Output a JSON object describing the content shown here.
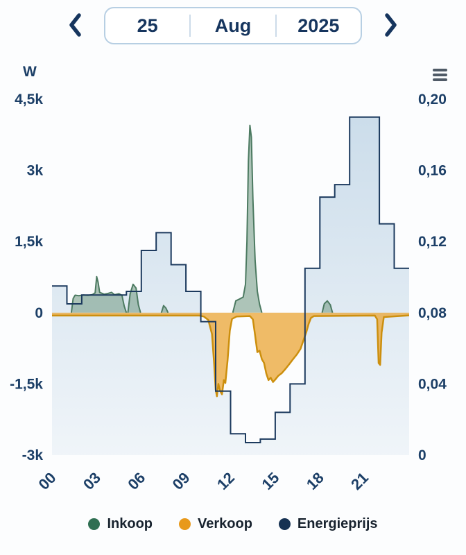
{
  "date_nav": {
    "day": "25",
    "month": "Aug",
    "year": "2025"
  },
  "icons": {
    "prev": "chevron-left",
    "next": "chevron-right",
    "menu": "hamburger-menu"
  },
  "chart": {
    "unit_label": "W"
  },
  "legend": {
    "items": [
      {
        "label": "Inkoop",
        "color": "#2f6f52"
      },
      {
        "label": "Verkoop",
        "color": "#e8991a"
      },
      {
        "label": "Energieprijs",
        "color": "#163253"
      }
    ]
  },
  "chart_data": {
    "type": "area",
    "title": "",
    "x_unit": "hour",
    "xlim": [
      0,
      24
    ],
    "grid": false,
    "legend_position": "bottom",
    "x_axis": {
      "ticks": [
        {
          "value": 0,
          "label": "00"
        },
        {
          "value": 3,
          "label": "03"
        },
        {
          "value": 6,
          "label": "06"
        },
        {
          "value": 9,
          "label": "09"
        },
        {
          "value": 12,
          "label": "12"
        },
        {
          "value": 15,
          "label": "15"
        },
        {
          "value": 18,
          "label": "18"
        },
        {
          "value": 21,
          "label": "21"
        }
      ]
    },
    "left_axis": {
      "label": "W",
      "range": [
        -3000,
        4500
      ],
      "ticks": [
        {
          "value": 4500,
          "label": "4,5k"
        },
        {
          "value": 3000,
          "label": "3k"
        },
        {
          "value": 1500,
          "label": "1,5k"
        },
        {
          "value": 0,
          "label": "0"
        },
        {
          "value": -1500,
          "label": "-1,5k"
        },
        {
          "value": -3000,
          "label": "-3k"
        }
      ]
    },
    "right_axis": {
      "range": [
        0,
        0.2
      ],
      "ticks": [
        {
          "value": 0.2,
          "label": "0,20"
        },
        {
          "value": 0.16,
          "label": "0,16"
        },
        {
          "value": 0.12,
          "label": "0,12"
        },
        {
          "value": 0.08,
          "label": "0,08"
        },
        {
          "value": 0.04,
          "label": "0,04"
        },
        {
          "value": 0,
          "label": "0"
        }
      ]
    },
    "series": {
      "inkoop": {
        "name": "Inkoop",
        "kind": "area",
        "unit": "W",
        "color": "#4c7a61",
        "fill": "#7da28c",
        "segments": [
          [
            [
              1.3,
              0
            ],
            [
              1.42,
              300
            ],
            [
              1.55,
              370
            ],
            [
              1.8,
              360
            ],
            [
              2.1,
              375
            ],
            [
              2.4,
              365
            ],
            [
              2.7,
              380
            ],
            [
              2.9,
              420
            ],
            [
              3.0,
              760
            ],
            [
              3.1,
              640
            ],
            [
              3.2,
              430
            ],
            [
              3.5,
              390
            ],
            [
              3.75,
              405
            ],
            [
              4.0,
              430
            ],
            [
              4.2,
              380
            ],
            [
              4.5,
              400
            ],
            [
              4.7,
              365
            ],
            [
              4.85,
              140
            ],
            [
              5.0,
              0
            ]
          ],
          [
            [
              5.1,
              0
            ],
            [
              5.25,
              400
            ],
            [
              5.45,
              600
            ],
            [
              5.65,
              520
            ],
            [
              5.8,
              170
            ],
            [
              5.95,
              0
            ]
          ],
          [
            [
              7.35,
              0
            ],
            [
              7.5,
              150
            ],
            [
              7.65,
              100
            ],
            [
              7.8,
              0
            ]
          ],
          [
            [
              12.15,
              0
            ],
            [
              12.35,
              250
            ],
            [
              12.6,
              290
            ],
            [
              12.85,
              330
            ],
            [
              13.0,
              600
            ],
            [
              13.1,
              1500
            ],
            [
              13.2,
              3200
            ],
            [
              13.3,
              3950
            ],
            [
              13.4,
              3700
            ],
            [
              13.5,
              2400
            ],
            [
              13.65,
              1100
            ],
            [
              13.8,
              450
            ],
            [
              13.95,
              180
            ],
            [
              14.1,
              0
            ]
          ],
          [
            [
              18.15,
              0
            ],
            [
              18.3,
              190
            ],
            [
              18.5,
              250
            ],
            [
              18.7,
              170
            ],
            [
              18.85,
              0
            ]
          ]
        ]
      },
      "verkoop": {
        "name": "Verkoop",
        "kind": "area",
        "unit": "W",
        "color": "#cc8f0e",
        "fill": "#eaa83c",
        "points": [
          [
            0,
            -60
          ],
          [
            9.9,
            -60
          ],
          [
            10.2,
            -80
          ],
          [
            10.5,
            -150
          ],
          [
            10.75,
            -450
          ],
          [
            10.9,
            -1100
          ],
          [
            11.0,
            -1620
          ],
          [
            11.08,
            -1760
          ],
          [
            11.18,
            -1500
          ],
          [
            11.3,
            -1650
          ],
          [
            11.42,
            -1720
          ],
          [
            11.55,
            -1420
          ],
          [
            11.65,
            -1480
          ],
          [
            11.8,
            -1000
          ],
          [
            11.95,
            -380
          ],
          [
            12.1,
            -130
          ],
          [
            12.4,
            -80
          ],
          [
            13.3,
            -70
          ],
          [
            13.5,
            -140
          ],
          [
            13.65,
            -480
          ],
          [
            13.8,
            -830
          ],
          [
            13.95,
            -800
          ],
          [
            14.1,
            -980
          ],
          [
            14.25,
            -1060
          ],
          [
            14.4,
            -1280
          ],
          [
            14.55,
            -1420
          ],
          [
            14.7,
            -1370
          ],
          [
            14.85,
            -1460
          ],
          [
            15.0,
            -1410
          ],
          [
            15.2,
            -1330
          ],
          [
            15.45,
            -1270
          ],
          [
            15.7,
            -1180
          ],
          [
            15.95,
            -1080
          ],
          [
            16.2,
            -980
          ],
          [
            16.45,
            -880
          ],
          [
            16.7,
            -760
          ],
          [
            16.9,
            -580
          ],
          [
            17.1,
            -400
          ],
          [
            17.25,
            -230
          ],
          [
            17.4,
            -110
          ],
          [
            17.6,
            -70
          ],
          [
            21.7,
            -60
          ],
          [
            21.85,
            -140
          ],
          [
            21.95,
            -1060
          ],
          [
            22.05,
            -1100
          ],
          [
            22.15,
            -420
          ],
          [
            22.3,
            -90
          ],
          [
            24,
            -55
          ]
        ]
      },
      "energieprijs": {
        "name": "Energieprijs",
        "kind": "step-line",
        "step": "hourly",
        "color": "#1c3a5e",
        "fill": "#b7cfe2",
        "values": [
          0.095,
          0.085,
          0.09,
          0.09,
          0.09,
          0.092,
          0.115,
          0.125,
          0.107,
          0.092,
          0.075,
          0.036,
          0.012,
          0.007,
          0.009,
          0.024,
          0.04,
          0.105,
          0.145,
          0.152,
          0.19,
          0.19,
          0.13,
          0.105
        ]
      }
    }
  }
}
